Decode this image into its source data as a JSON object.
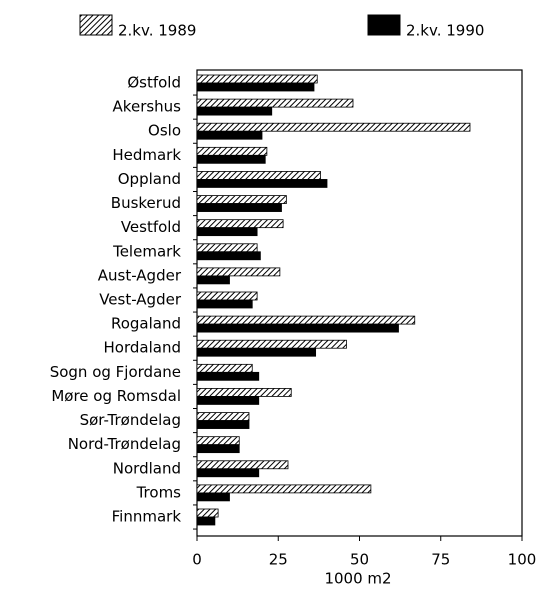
{
  "chart_data": {
    "type": "hbar",
    "x_label": "1000 m2",
    "categories": [
      "Østfold",
      "Akershus",
      "Oslo",
      "Hedmark",
      "Oppland",
      "Buskerud",
      "Vestfold",
      "Telemark",
      "Aust-Agder",
      "Vest-Agder",
      "Rogaland",
      "Hordaland",
      "Sogn og Fjordane",
      "Møre og Romsdal",
      "Sør-Trøndelag",
      "Nord-Trøndelag",
      "Nordland",
      "Troms",
      "Finnmark"
    ],
    "series": [
      {
        "name": "2.kv. 1989",
        "color": "#000000",
        "hatch": true,
        "values": [
          37,
          48,
          84,
          21.5,
          38,
          27.5,
          26.5,
          18.5,
          25.5,
          18.5,
          67,
          46,
          17,
          29,
          16,
          13,
          28,
          53.5,
          6.5
        ]
      },
      {
        "name": "2.kv. 1990",
        "color": "#000000",
        "values": [
          36,
          23,
          20,
          21,
          40,
          26,
          18.5,
          19.5,
          10,
          17,
          62,
          36.5,
          19,
          19,
          16,
          13,
          19,
          10,
          5.5
        ]
      }
    ],
    "xlim": [
      0,
      100
    ],
    "xticks": [
      0,
      25,
      50,
      75,
      100
    ]
  }
}
